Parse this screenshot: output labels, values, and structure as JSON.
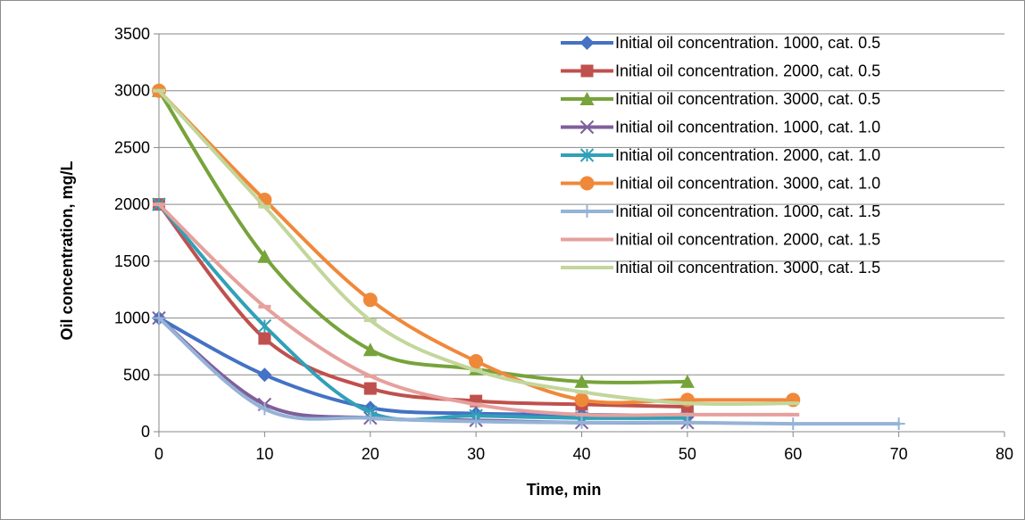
{
  "chart_data": {
    "type": "line",
    "title": "",
    "xlabel": "Time, min",
    "ylabel": "Oil concentration, mg/L",
    "xlim": [
      0,
      80
    ],
    "ylim": [
      0,
      3500
    ],
    "x_ticks": [
      0,
      10,
      20,
      30,
      40,
      50,
      60,
      70,
      80
    ],
    "y_ticks": [
      0,
      500,
      1000,
      1500,
      2000,
      2500,
      3000,
      3500
    ],
    "grid": "horizontal",
    "legend_position": "right",
    "smoothed": true,
    "series": [
      {
        "name": "Initial oil concentration. 1000, cat. 0.5",
        "color": "#4472C4",
        "marker": "diamond",
        "x": [
          0,
          10,
          20,
          30,
          40,
          50
        ],
        "y": [
          1000,
          500,
          210,
          160,
          150,
          140
        ]
      },
      {
        "name": "Initial oil concentration. 2000, cat. 0.5",
        "color": "#C0504D",
        "marker": "square",
        "x": [
          0,
          10,
          20,
          30,
          40,
          50
        ],
        "y": [
          2000,
          820,
          380,
          270,
          240,
          220
        ]
      },
      {
        "name": "Initial oil concentration. 3000, cat. 0.5",
        "color": "#77A33B",
        "marker": "triangle",
        "x": [
          0,
          10,
          20,
          30,
          40,
          50
        ],
        "y": [
          3000,
          1540,
          720,
          550,
          440,
          440
        ]
      },
      {
        "name": "Initial oil concentration. 1000, cat. 1.0",
        "color": "#7F5F9B",
        "marker": "x",
        "x": [
          0,
          10,
          20,
          30,
          40,
          50
        ],
        "y": [
          1000,
          240,
          120,
          100,
          80,
          80
        ]
      },
      {
        "name": "Initial oil concentration. 2000, cat. 1.0",
        "color": "#31A0B8",
        "marker": "star",
        "x": [
          0,
          10,
          20,
          30,
          40,
          50
        ],
        "y": [
          2000,
          930,
          170,
          140,
          120,
          120
        ]
      },
      {
        "name": "Initial oil concentration. 3000, cat. 1.0",
        "color": "#F0883A",
        "marker": "circle",
        "x": [
          0,
          10,
          20,
          30,
          40,
          50,
          60
        ],
        "y": [
          3000,
          2040,
          1160,
          620,
          280,
          280,
          280
        ]
      },
      {
        "name": "Initial oil concentration. 1000, cat. 1.5",
        "color": "#95B3D7",
        "marker": "plus",
        "x": [
          0,
          10,
          20,
          30,
          40,
          50,
          60,
          70
        ],
        "y": [
          1000,
          200,
          120,
          90,
          80,
          80,
          70,
          70
        ]
      },
      {
        "name": "Initial oil concentration. 2000, cat. 1.5",
        "color": "#E6A09D",
        "marker": "dash",
        "x": [
          0,
          10,
          20,
          30,
          40,
          50,
          60
        ],
        "y": [
          2000,
          1100,
          490,
          240,
          150,
          150,
          150
        ]
      },
      {
        "name": "Initial oil concentration. 3000, cat. 1.5",
        "color": "#C3D69B",
        "marker": "dash",
        "x": [
          0,
          10,
          20,
          30,
          40,
          50,
          60
        ],
        "y": [
          3000,
          1980,
          980,
          540,
          350,
          250,
          250
        ]
      }
    ]
  }
}
